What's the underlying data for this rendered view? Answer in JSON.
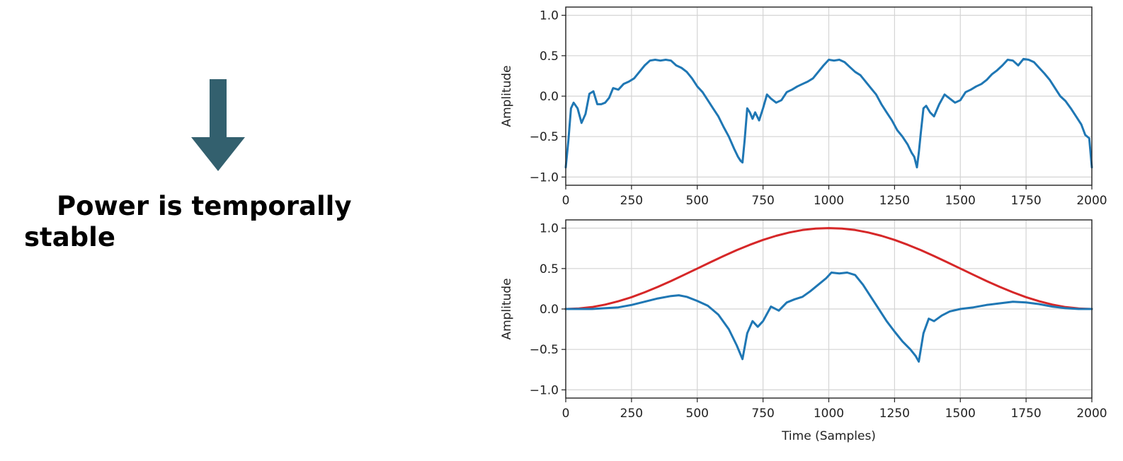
{
  "slide": {
    "statement": "Power is temporally stable",
    "arrow_color": "#33606e"
  },
  "chart_data": [
    {
      "type": "line",
      "title": "",
      "xlabel": "",
      "ylabel": "Amplitude",
      "xlim": [
        0,
        2000
      ],
      "ylim": [
        -1.0,
        1.0
      ],
      "xticks": [
        0,
        250,
        500,
        750,
        1000,
        1250,
        1500,
        1750,
        2000
      ],
      "yticks": [
        -1.0,
        -0.5,
        0.0,
        0.5,
        1.0
      ],
      "grid": true,
      "series": [
        {
          "color": "#1f77b4",
          "x": [
            0,
            10,
            20,
            30,
            45,
            60,
            75,
            90,
            105,
            120,
            135,
            150,
            165,
            180,
            200,
            220,
            240,
            260,
            280,
            300,
            320,
            340,
            360,
            380,
            400,
            420,
            440,
            460,
            480,
            500,
            520,
            540,
            560,
            580,
            600,
            620,
            640,
            655,
            665,
            672,
            680,
            690,
            700,
            710,
            720,
            735,
            750,
            765,
            780,
            800,
            820,
            840,
            860,
            880,
            900,
            920,
            940,
            960,
            980,
            1000,
            1020,
            1040,
            1060,
            1080,
            1100,
            1120,
            1140,
            1160,
            1180,
            1200,
            1220,
            1240,
            1260,
            1280,
            1300,
            1315,
            1325,
            1335,
            1342,
            1350,
            1360,
            1370,
            1385,
            1400,
            1420,
            1440,
            1460,
            1480,
            1500,
            1520,
            1540,
            1560,
            1580,
            1600,
            1620,
            1640,
            1660,
            1680,
            1700,
            1720,
            1740,
            1760,
            1780,
            1800,
            1820,
            1840,
            1860,
            1880,
            1900,
            1920,
            1940,
            1960,
            1975,
            1990,
            2000
          ],
          "y": [
            -0.88,
            -0.55,
            -0.15,
            -0.08,
            -0.15,
            -0.33,
            -0.22,
            0.03,
            0.06,
            -0.1,
            -0.1,
            -0.08,
            -0.02,
            0.1,
            0.08,
            0.15,
            0.18,
            0.22,
            0.3,
            0.38,
            0.44,
            0.45,
            0.44,
            0.45,
            0.44,
            0.38,
            0.35,
            0.3,
            0.22,
            0.12,
            0.05,
            -0.05,
            -0.15,
            -0.25,
            -0.38,
            -0.5,
            -0.65,
            -0.75,
            -0.8,
            -0.82,
            -0.55,
            -0.15,
            -0.2,
            -0.28,
            -0.2,
            -0.3,
            -0.15,
            0.02,
            -0.03,
            -0.08,
            -0.05,
            0.05,
            0.08,
            0.12,
            0.15,
            0.18,
            0.22,
            0.3,
            0.38,
            0.45,
            0.44,
            0.45,
            0.42,
            0.36,
            0.3,
            0.26,
            0.18,
            0.1,
            0.02,
            -0.1,
            -0.2,
            -0.3,
            -0.42,
            -0.5,
            -0.6,
            -0.7,
            -0.75,
            -0.88,
            -0.7,
            -0.45,
            -0.15,
            -0.12,
            -0.2,
            -0.25,
            -0.1,
            0.02,
            -0.03,
            -0.08,
            -0.05,
            0.05,
            0.08,
            0.12,
            0.15,
            0.2,
            0.27,
            0.32,
            0.38,
            0.45,
            0.44,
            0.38,
            0.46,
            0.45,
            0.42,
            0.35,
            0.28,
            0.2,
            0.1,
            0.0,
            -0.06,
            -0.15,
            -0.25,
            -0.35,
            -0.48,
            -0.52,
            -0.88
          ]
        }
      ]
    },
    {
      "type": "line",
      "title": "",
      "xlabel": "Time (Samples)",
      "ylabel": "Amplitude",
      "xlim": [
        0,
        2000
      ],
      "ylim": [
        -1.0,
        1.0
      ],
      "xticks": [
        0,
        250,
        500,
        750,
        1000,
        1250,
        1500,
        1750,
        2000
      ],
      "yticks": [
        -1.0,
        -0.5,
        0.0,
        0.5,
        1.0
      ],
      "grid": true,
      "series": [
        {
          "color": "#d62728",
          "x": [
            0,
            50,
            100,
            150,
            200,
            250,
            300,
            350,
            400,
            450,
            500,
            550,
            600,
            650,
            700,
            750,
            800,
            850,
            900,
            950,
            1000,
            1050,
            1100,
            1150,
            1200,
            1250,
            1300,
            1350,
            1400,
            1450,
            1500,
            1550,
            1600,
            1650,
            1700,
            1750,
            1800,
            1850,
            1900,
            1950,
            2000
          ],
          "y": [
            0.0,
            0.006,
            0.024,
            0.054,
            0.095,
            0.146,
            0.206,
            0.273,
            0.345,
            0.422,
            0.5,
            0.578,
            0.655,
            0.727,
            0.794,
            0.854,
            0.905,
            0.946,
            0.976,
            0.994,
            1.0,
            0.994,
            0.976,
            0.946,
            0.905,
            0.854,
            0.794,
            0.727,
            0.655,
            0.578,
            0.5,
            0.422,
            0.345,
            0.273,
            0.206,
            0.146,
            0.095,
            0.054,
            0.024,
            0.006,
            0.0
          ]
        },
        {
          "color": "#1f77b4",
          "x": [
            0,
            50,
            100,
            150,
            200,
            250,
            300,
            350,
            400,
            430,
            460,
            500,
            540,
            580,
            620,
            650,
            672,
            690,
            710,
            730,
            750,
            780,
            810,
            840,
            870,
            900,
            930,
            960,
            990,
            1010,
            1040,
            1070,
            1100,
            1130,
            1160,
            1190,
            1220,
            1250,
            1280,
            1310,
            1330,
            1342,
            1360,
            1380,
            1400,
            1430,
            1460,
            1500,
            1550,
            1600,
            1650,
            1700,
            1750,
            1800,
            1850,
            1900,
            1950,
            2000
          ],
          "y": [
            0.0,
            0.0,
            0.0,
            0.01,
            0.02,
            0.05,
            0.09,
            0.13,
            0.16,
            0.17,
            0.15,
            0.1,
            0.04,
            -0.07,
            -0.25,
            -0.45,
            -0.62,
            -0.3,
            -0.15,
            -0.22,
            -0.15,
            0.03,
            -0.02,
            0.08,
            0.12,
            0.15,
            0.22,
            0.3,
            0.38,
            0.45,
            0.44,
            0.45,
            0.42,
            0.3,
            0.15,
            0.0,
            -0.15,
            -0.28,
            -0.4,
            -0.5,
            -0.58,
            -0.65,
            -0.3,
            -0.12,
            -0.15,
            -0.08,
            -0.03,
            0.0,
            0.02,
            0.05,
            0.07,
            0.09,
            0.08,
            0.06,
            0.03,
            0.01,
            0.0,
            0.0
          ]
        }
      ]
    }
  ]
}
